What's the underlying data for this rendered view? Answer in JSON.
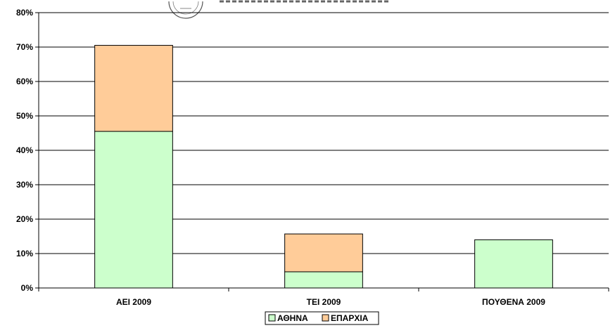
{
  "chart_data": {
    "type": "bar",
    "stacked": true,
    "categories": [
      "ΑΕΙ 2009",
      "ΤΕΙ 2009",
      "ΠΟΥΘΕΝΑ 2009"
    ],
    "series": [
      {
        "name": "ΑΘΗΝΑ",
        "values": [
          45.5,
          4.7,
          14.0
        ],
        "color": "#ccffcc"
      },
      {
        "name": "ΕΠΑΡΧΙΑ",
        "values": [
          25.0,
          11.0,
          0
        ],
        "color": "#ffcc99"
      }
    ],
    "ylim": [
      0,
      80
    ],
    "yticks": [
      0,
      10,
      20,
      30,
      40,
      50,
      60,
      70,
      80
    ],
    "ytick_format": "%",
    "grid": true,
    "legend_position": "bottom"
  }
}
